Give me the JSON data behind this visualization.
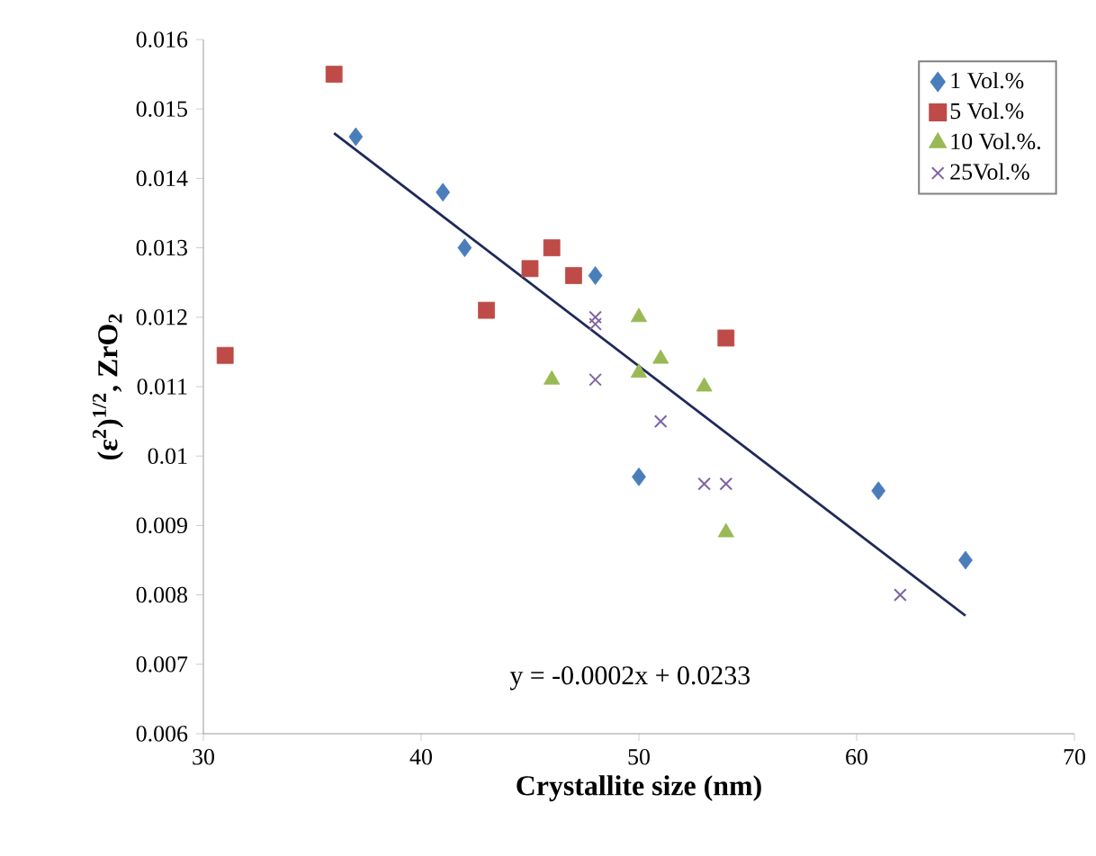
{
  "chart_data": {
    "type": "scatter",
    "xlabel": "Crystallite size (nm)",
    "ylabel": "(ε$^{2}$)$^{1/2}$, ZrO$_{2}$",
    "xlim": [
      30,
      70
    ],
    "xticks": [
      30,
      40,
      50,
      60,
      70
    ],
    "ylim": [
      0.006,
      0.016
    ],
    "yticks": [
      0.006,
      0.007,
      0.008,
      0.009,
      0.01,
      0.011,
      0.012,
      0.013,
      0.014,
      0.015,
      0.016
    ],
    "grid": false,
    "legend": "top right",
    "series": [
      {
        "name": "1 Vol.%",
        "color": "#4a7ebb",
        "marker": "diamond",
        "x": [
          37,
          41,
          42,
          48,
          50,
          61,
          65
        ],
        "values": [
          0.0146,
          0.0138,
          0.013,
          0.0126,
          0.0097,
          0.0095,
          0.0085
        ]
      },
      {
        "name": "5 Vol.%",
        "color": "#be4b48",
        "marker": "square",
        "x": [
          31,
          36,
          43,
          45,
          46,
          47,
          54
        ],
        "values": [
          0.01145,
          0.0155,
          0.0121,
          0.0127,
          0.013,
          0.0126,
          0.0117
        ]
      },
      {
        "name": "10 Vol.%.",
        "color": "#98b954",
        "marker": "triangle",
        "x": [
          46,
          50,
          50,
          51,
          53,
          54
        ],
        "values": [
          0.0111,
          0.012,
          0.0112,
          0.0114,
          0.011,
          0.0089
        ]
      },
      {
        "name": "25Vol.%",
        "color": "#7f63a2",
        "marker": "cross",
        "x": [
          48,
          48,
          48,
          51,
          53,
          54,
          62
        ],
        "values": [
          0.0119,
          0.012,
          0.0111,
          0.0105,
          0.0096,
          0.0096,
          0.008
        ]
      },
      {
        "type": "line",
        "color": "#1f2a5a",
        "marker": "none",
        "line_style": "solid",
        "x": [
          36,
          65
        ],
        "values": [
          0.01465,
          0.0077
        ]
      }
    ],
    "annotations": [
      "y = -0.0002x + 0.0233"
    ]
  }
}
